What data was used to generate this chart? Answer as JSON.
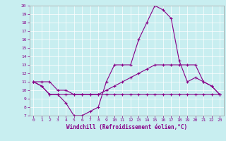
{
  "xlabel": "Windchill (Refroidissement éolien,°C)",
  "bg_color": "#c8eef0",
  "line_color": "#880088",
  "grid_color": "#ffffff",
  "xmin": 0,
  "xmax": 23,
  "ymin": 7,
  "ymax": 20,
  "hours": [
    0,
    1,
    2,
    3,
    4,
    5,
    6,
    7,
    8,
    9,
    10,
    11,
    12,
    13,
    14,
    15,
    16,
    17,
    18,
    19,
    20,
    21,
    22,
    23
  ],
  "line1": [
    11,
    10.5,
    9.5,
    9.5,
    8.5,
    7,
    7,
    7.5,
    8,
    11,
    13,
    13,
    13,
    16,
    18,
    20,
    19.5,
    18.5,
    13.5,
    11,
    11.5,
    11,
    10.5,
    9.5
  ],
  "line2": [
    11,
    10.5,
    9.5,
    9.5,
    9.5,
    9.5,
    9.5,
    9.5,
    9.5,
    10,
    10.5,
    11,
    11.5,
    12,
    12.5,
    13,
    13,
    13,
    13,
    13,
    13,
    11,
    10.5,
    9.5
  ],
  "line3": [
    11,
    11,
    11,
    10,
    10,
    9.5,
    9.5,
    9.5,
    9.5,
    9.5,
    9.5,
    9.5,
    9.5,
    9.5,
    9.5,
    9.5,
    9.5,
    9.5,
    9.5,
    9.5,
    9.5,
    9.5,
    9.5,
    9.5
  ]
}
